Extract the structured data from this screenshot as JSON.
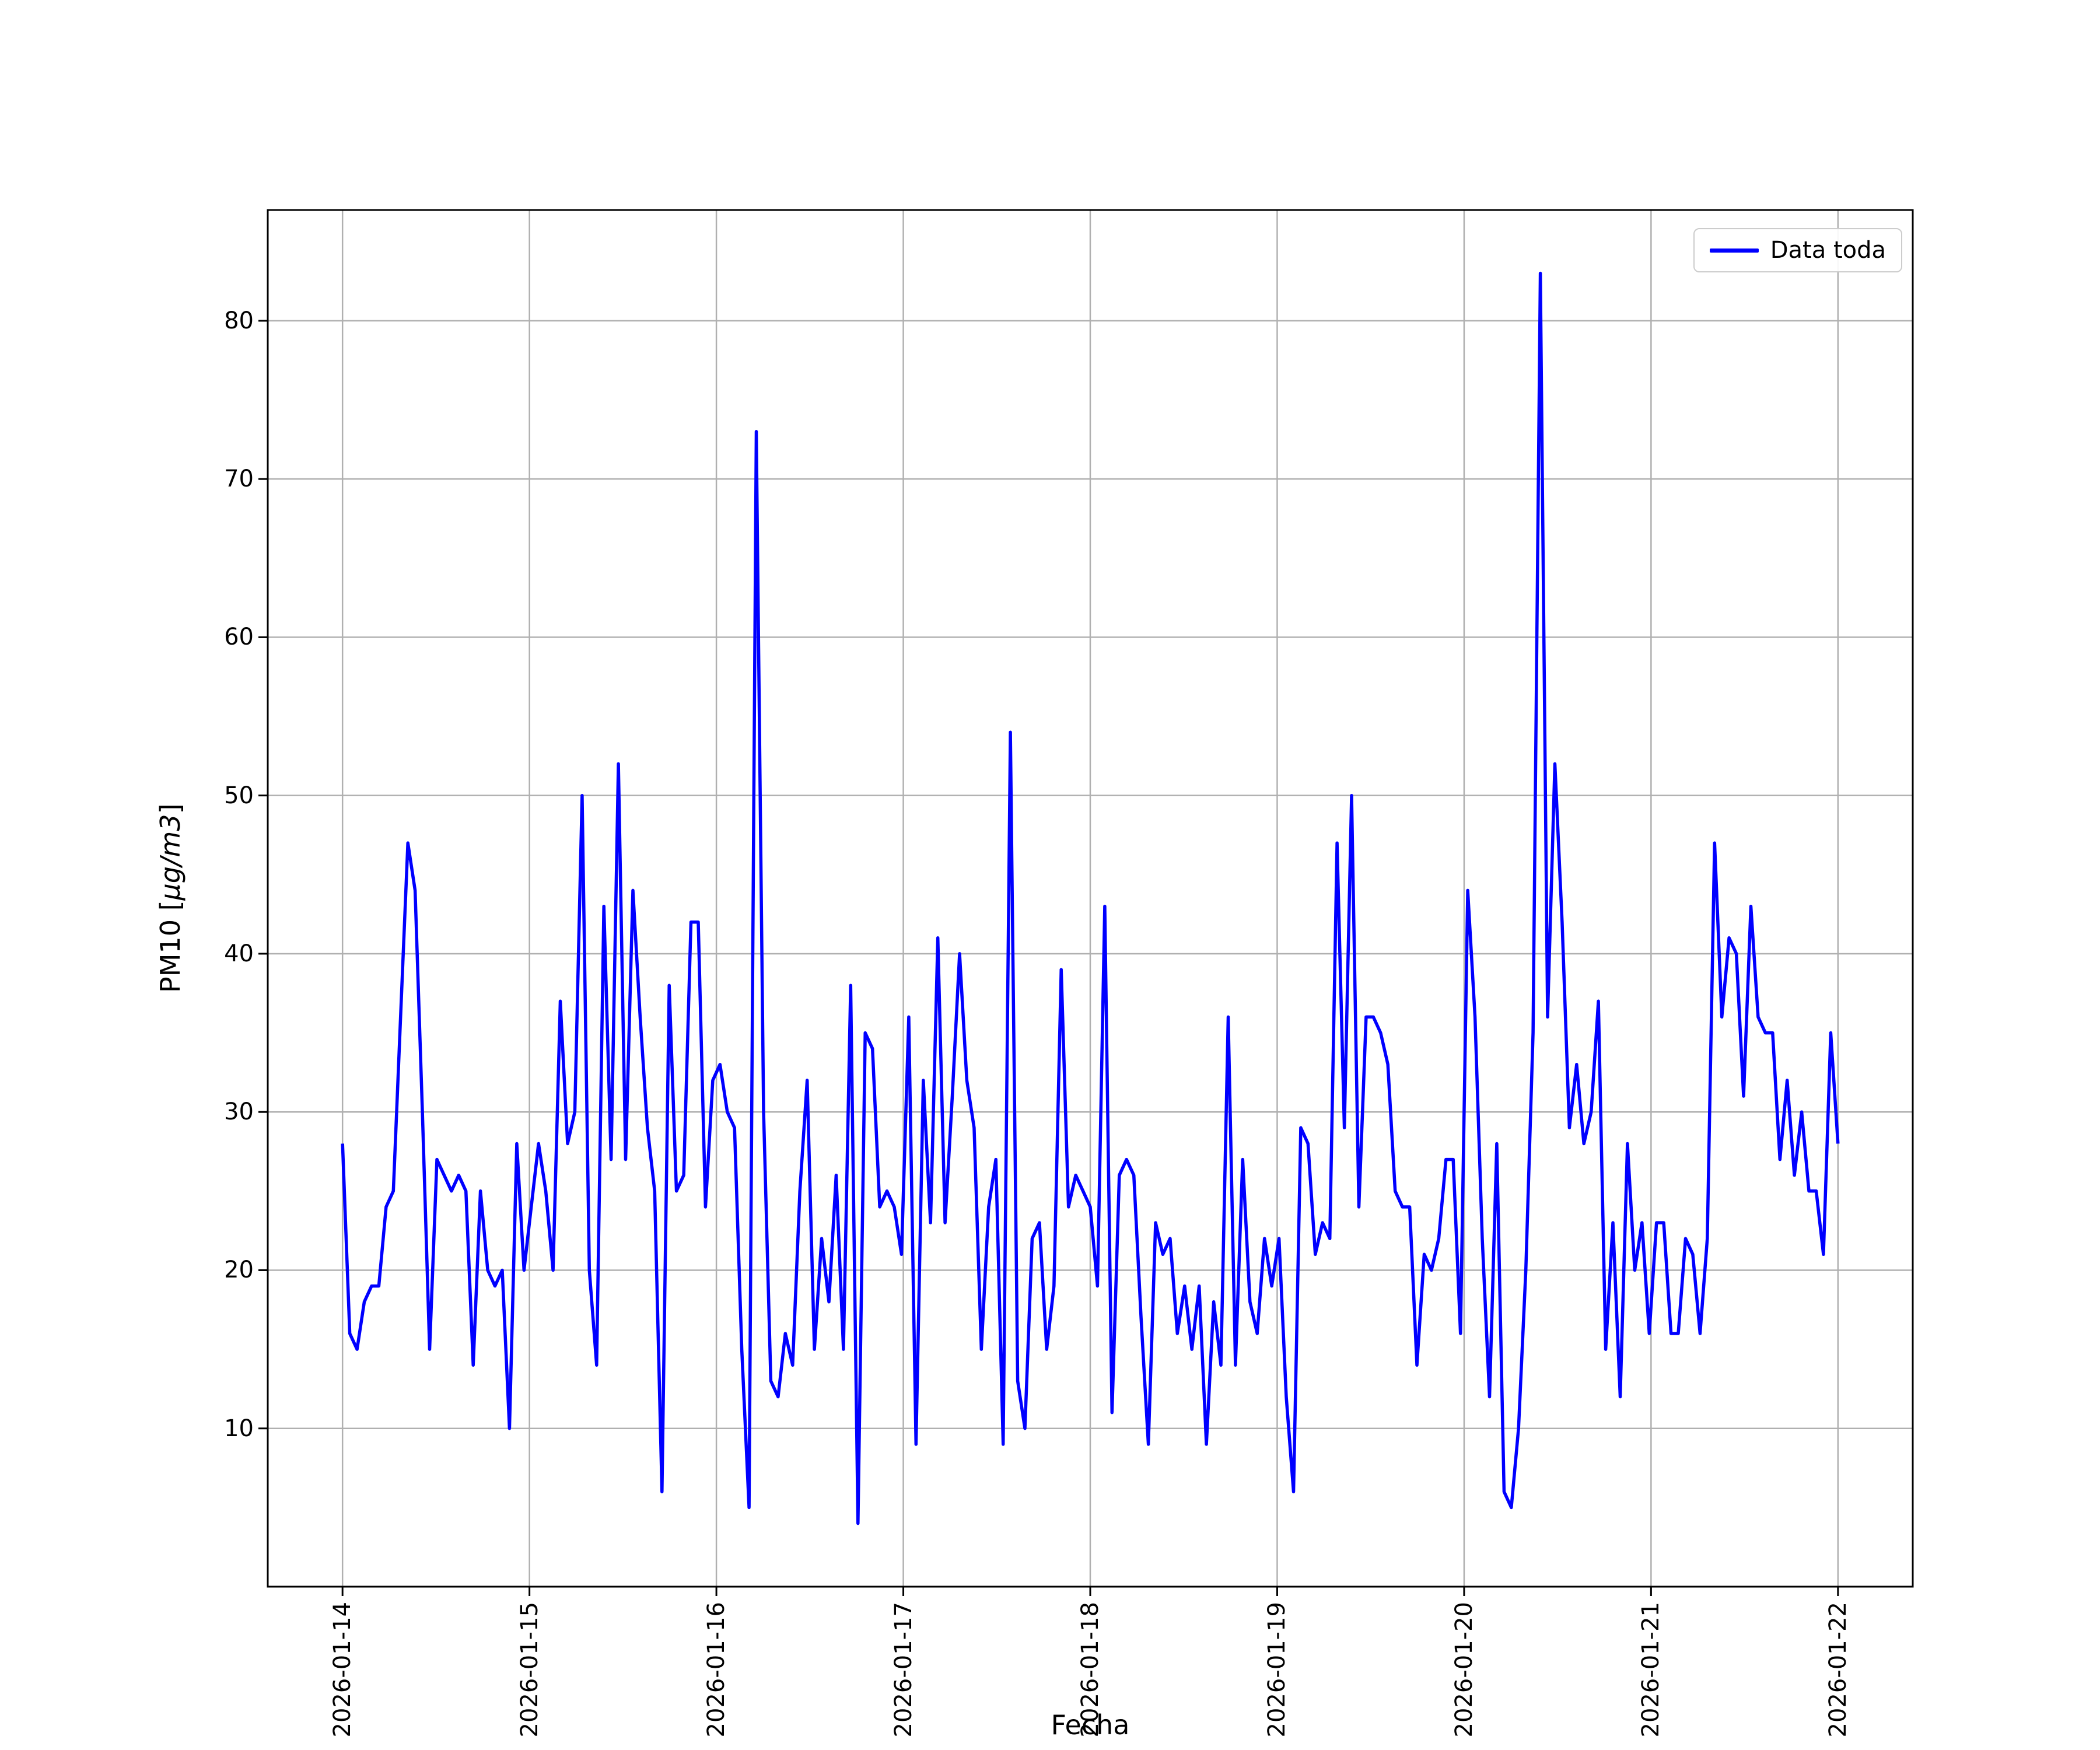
{
  "figure": {
    "background": "#ffffff"
  },
  "axes": {
    "xlabel": "Fecha",
    "ylabel_prefix": "PM10 [",
    "ylabel_math": "µg/m3",
    "ylabel_suffix": "]"
  },
  "legend": {
    "label": "Data toda",
    "line_color": "#0000ff"
  },
  "chart_data": {
    "type": "line",
    "title": "",
    "xlabel": "Fecha",
    "ylabel": "PM10 [µg/m3]",
    "legend_entries": [
      "Data toda"
    ],
    "legend_position": "upper right",
    "grid": true,
    "grid_color": "#b0b0b0",
    "line_color": "#0000ff",
    "x_tick_labels": [
      "2026-01-14",
      "2026-01-15",
      "2026-01-16",
      "2026-01-17",
      "2026-01-18",
      "2026-01-19",
      "2026-01-20",
      "2026-01-21",
      "2026-01-22"
    ],
    "y_ticks": [
      10,
      20,
      30,
      40,
      50,
      60,
      70,
      80
    ],
    "xlim_days": [
      -0.4,
      8.4
    ],
    "ylim": [
      0,
      87
    ],
    "series": [
      {
        "name": "Data toda",
        "x_span_days": [
          0,
          8
        ],
        "values": [
          28,
          16,
          15,
          18,
          19,
          19,
          24,
          25,
          36,
          47,
          44,
          30,
          15,
          27,
          26,
          25,
          26,
          25,
          14,
          25,
          20,
          19,
          20,
          10,
          28,
          20,
          24,
          28,
          25,
          20,
          37,
          28,
          30,
          50,
          20,
          14,
          43,
          27,
          52,
          27,
          44,
          36,
          29,
          25,
          6,
          38,
          25,
          26,
          42,
          42,
          24,
          32,
          33,
          30,
          29,
          15,
          5,
          73,
          30,
          13,
          12,
          16,
          14,
          25,
          32,
          15,
          22,
          18,
          26,
          15,
          38,
          4,
          35,
          34,
          24,
          25,
          24,
          21,
          36,
          9,
          32,
          23,
          41,
          23,
          31,
          40,
          32,
          29,
          15,
          24,
          27,
          9,
          54,
          13,
          10,
          22,
          23,
          15,
          19,
          39,
          24,
          26,
          25,
          24,
          19,
          43,
          11,
          26,
          27,
          26,
          17,
          9,
          23,
          21,
          22,
          16,
          19,
          15,
          19,
          9,
          18,
          14,
          36,
          14,
          27,
          18,
          16,
          22,
          19,
          22,
          12,
          6,
          29,
          28,
          21,
          23,
          22,
          47,
          29,
          50,
          24,
          36,
          36,
          35,
          33,
          25,
          24,
          24,
          14,
          21,
          20,
          22,
          27,
          27,
          16,
          44,
          36,
          22,
          12,
          28,
          6,
          5,
          10,
          20,
          35,
          83,
          36,
          52,
          42,
          29,
          33,
          28,
          30,
          37,
          15,
          23,
          12,
          28,
          20,
          23,
          16,
          23,
          23,
          16,
          16,
          22,
          21,
          16,
          22,
          47,
          36,
          41,
          40,
          31,
          43,
          36,
          35,
          35,
          27,
          32,
          26,
          30,
          25,
          25,
          21,
          35,
          28
        ]
      }
    ]
  }
}
